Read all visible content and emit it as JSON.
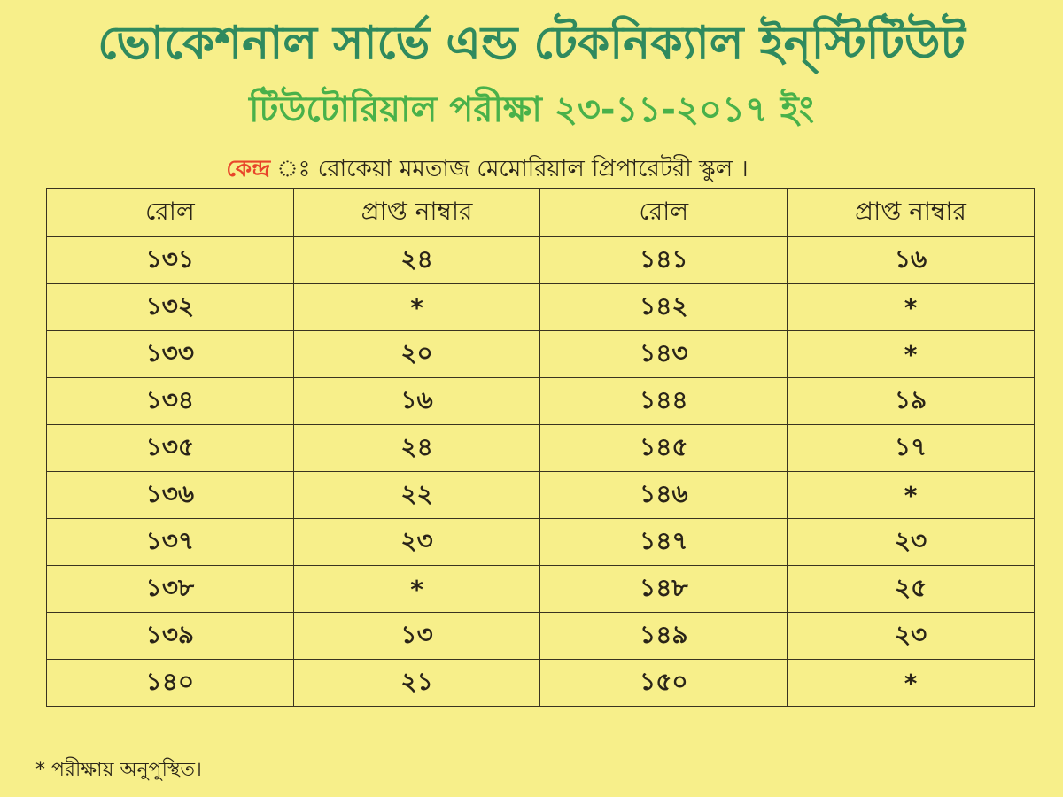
{
  "header": {
    "title": "ভোকেশনাল সার্ভে এন্ড টেকনিক্যাল ইন্‌স্টিটিউট",
    "subtitle": "টিউটোরিয়াল পরীক্ষা ২৩-১১-২০১৭ ইং",
    "center_label": "কেন্দ্র",
    "center_sep": " ঃ ",
    "center_value": "রোকেয়া মমতাজ মেমোরিয়াল প্রিপারেটরী স্কুল ।"
  },
  "colors": {
    "title": "#2f8a5e",
    "subtitle": "#49b14a",
    "center_label": "#e8452a",
    "paper": "#f7ef8a"
  },
  "table": {
    "headers": [
      "রোল",
      "প্রাপ্ত নাম্বার",
      "রোল",
      "প্রাপ্ত নাম্বার"
    ],
    "rows": [
      [
        "১৩১",
        "২৪",
        "১৪১",
        "১৬"
      ],
      [
        "১৩২",
        "*",
        "১৪২",
        "*"
      ],
      [
        "১৩৩",
        "২০",
        "১৪৩",
        "*"
      ],
      [
        "১৩৪",
        "১৬",
        "১৪৪",
        "১৯"
      ],
      [
        "১৩৫",
        "২৪",
        "১৪৫",
        "১৭"
      ],
      [
        "১৩৬",
        "২২",
        "১৪৬",
        "*"
      ],
      [
        "১৩৭",
        "২৩",
        "১৪৭",
        "২৩"
      ],
      [
        "১৩৮",
        "*",
        "১৪৮",
        "২৫"
      ],
      [
        "১৩৯",
        "১৩",
        "১৪৯",
        "২৩"
      ],
      [
        "১৪০",
        "২১",
        "১৫০",
        "*"
      ]
    ]
  },
  "footnote": "*  পরীক্ষায় অনুপুস্থিত।"
}
